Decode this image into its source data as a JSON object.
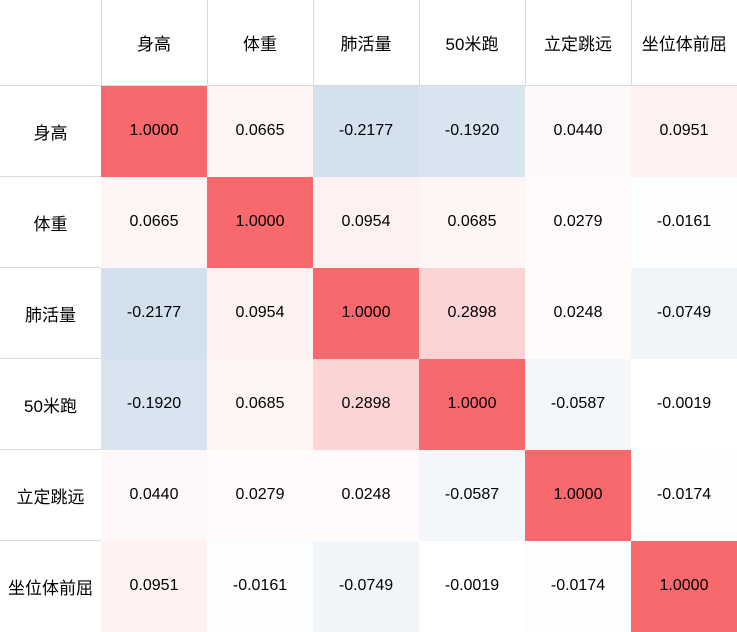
{
  "table": {
    "corner_label": ""
  },
  "colors": {
    "grid_line": "#d9d9d9",
    "header_background": "#ffffff",
    "text": "#000000",
    "positive_end": "#f8696d",
    "negative_end": "#3575b1",
    "zero_mid": "#ffffff"
  },
  "chart_data": {
    "type": "heatmap",
    "title": "",
    "categories": [
      "身高",
      "体重",
      "肺活量",
      "50米跑",
      "立定跳远",
      "坐位体前屈"
    ],
    "row_labels": [
      "身高",
      "体重",
      "肺活量",
      "50米跑",
      "立定跳远",
      "坐位体前屈"
    ],
    "matrix": [
      [
        1.0,
        0.0665,
        -0.2177,
        -0.192,
        0.044,
        0.0951
      ],
      [
        0.0665,
        1.0,
        0.0954,
        0.0685,
        0.0279,
        -0.0161
      ],
      [
        -0.2177,
        0.0954,
        1.0,
        0.2898,
        0.0248,
        -0.0749
      ],
      [
        -0.192,
        0.0685,
        0.2898,
        1.0,
        -0.0587,
        -0.0019
      ],
      [
        0.044,
        0.0279,
        0.0248,
        -0.0587,
        1.0,
        -0.0174
      ],
      [
        0.0951,
        -0.0161,
        -0.0749,
        -0.0019,
        -0.0174,
        1.0
      ]
    ],
    "value_decimals": 4,
    "value_range": [
      -1,
      1
    ],
    "legend": "none",
    "grid": "on"
  }
}
